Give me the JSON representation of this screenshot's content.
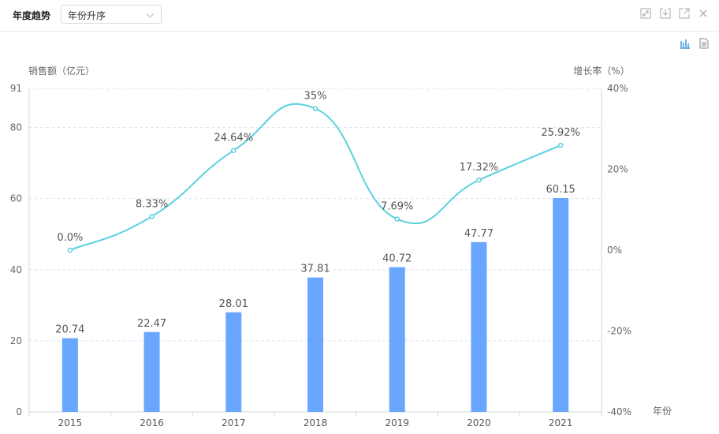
{
  "header": {
    "title": "年度趋势",
    "sort_select": "年份升序"
  },
  "colors": {
    "bar": "#69a7ff",
    "line": "#5bd0de",
    "grid": "#e0e6f1",
    "axis": "#cfdbdb"
  },
  "chart_data": {
    "type": "bar+line",
    "categories": [
      "2015",
      "2016",
      "2017",
      "2018",
      "2019",
      "2020",
      "2021"
    ],
    "series": [
      {
        "name": "销售额",
        "type": "bar",
        "axis": "left",
        "values": [
          20.74,
          22.47,
          28.01,
          37.81,
          40.72,
          47.77,
          60.15
        ],
        "labels": [
          "20.74",
          "22.47",
          "28.01",
          "37.81",
          "40.72",
          "47.77",
          "60.15"
        ]
      },
      {
        "name": "增长率",
        "type": "line",
        "axis": "right",
        "smooth": true,
        "values": [
          0.0,
          8.33,
          24.64,
          35,
          7.69,
          17.32,
          25.92
        ],
        "labels": [
          "0.0%",
          "8.33%",
          "24.64%",
          "35%",
          "7.69%",
          "17.32%",
          "25.92%"
        ]
      }
    ],
    "ylabel_left": "销售额（亿元）",
    "ylabel_right": "增长率（%）",
    "xlabel": "年份",
    "ylim_left": [
      0,
      91
    ],
    "yticks_left": [
      "0",
      "20",
      "40",
      "60",
      "80",
      "91"
    ],
    "yticks_left_values": [
      0,
      20,
      40,
      60,
      80,
      91
    ],
    "ylim_right": [
      -40,
      40
    ],
    "yticks_right": [
      "-40%",
      "-20%",
      "0%",
      "20%",
      "40%"
    ],
    "yticks_right_values": [
      -40,
      -20,
      0,
      20,
      40
    ],
    "grid": true
  }
}
